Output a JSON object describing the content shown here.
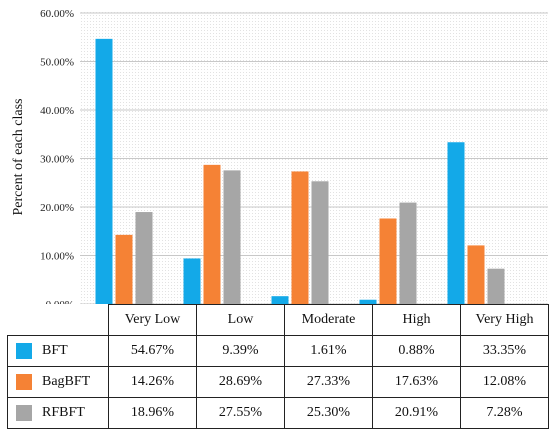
{
  "chart_data": {
    "type": "bar",
    "categories": [
      "Very Low",
      "Low",
      "Moderate",
      "High",
      "Very High"
    ],
    "series": [
      {
        "name": "BFT",
        "color": "#13a9e8",
        "values": [
          54.67,
          9.39,
          1.61,
          0.88,
          33.35
        ],
        "labels": [
          "54.67%",
          "9.39%",
          "1.61%",
          "0.88%",
          "33.35%"
        ]
      },
      {
        "name": "BagBFT",
        "color": "#f58235",
        "values": [
          14.26,
          28.69,
          27.33,
          17.63,
          12.08
        ],
        "labels": [
          "14.26%",
          "28.69%",
          "27.33%",
          "17.63%",
          "12.08%"
        ]
      },
      {
        "name": "RFBFT",
        "color": "#a6a6a6",
        "values": [
          18.96,
          27.55,
          25.3,
          20.91,
          7.28
        ],
        "labels": [
          "18.96%",
          "27.55%",
          "25.30%",
          "20.91%",
          "7.28%"
        ]
      }
    ],
    "ylabel": "Percent of each class",
    "ylim": [
      0,
      60
    ],
    "yticks": [
      0,
      10,
      20,
      30,
      40,
      50,
      60
    ],
    "ytick_labels": [
      "0.00%",
      "10.00%",
      "20.00%",
      "30.00%",
      "40.00%",
      "50.00%",
      "60.00%"
    ],
    "grid": true,
    "legend": "data table"
  }
}
